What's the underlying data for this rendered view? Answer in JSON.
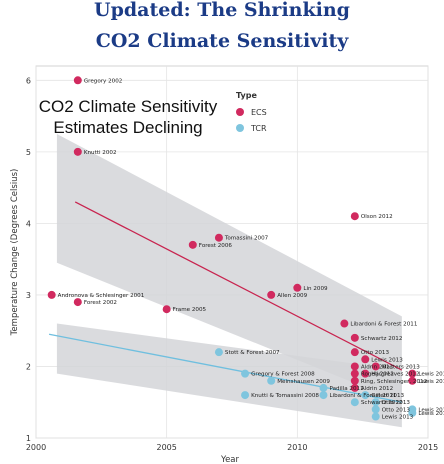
{
  "header": {
    "line1": "Updated: The Shrinking",
    "line2": "CO2 Climate Sensitivity"
  },
  "chart_data": {
    "type": "scatter",
    "title": "CO2 Climate Sensitivity Estimates Declining",
    "title_lines": [
      "CO2 Climate Sensitivity",
      "Estimates Declining"
    ],
    "xlabel": "Year",
    "ylabel": "Temperature Change (Degrees Celsius)",
    "xlim": [
      2000,
      2015
    ],
    "ylim": [
      1,
      6.2
    ],
    "x_ticks": [
      "2000",
      "2005",
      "2010",
      "2015"
    ],
    "y_ticks": [
      "1",
      "2",
      "3",
      "4",
      "5",
      "6"
    ],
    "grid": true,
    "legend": {
      "title": "Type",
      "position": "top-center"
    },
    "colors": {
      "ECS": "#d12a5f",
      "TCR": "#7fc5de",
      "band": "#d3d5d8",
      "ecs_trend": "#c8244f",
      "tcr_trend": "#6fbfdf"
    },
    "series": [
      {
        "name": "ECS",
        "points": [
          {
            "label": "Gregory 2002",
            "x": 2001.6,
            "y": 6.0
          },
          {
            "label": "Knutti 2002",
            "x": 2001.6,
            "y": 5.0
          },
          {
            "label": "Andronova & Schlesinger 2001",
            "x": 2000.6,
            "y": 3.0
          },
          {
            "label": "Forest 2002",
            "x": 2001.6,
            "y": 2.9
          },
          {
            "label": "Frame 2005",
            "x": 2005.0,
            "y": 2.8
          },
          {
            "label": "Forest 2006",
            "x": 2006.0,
            "y": 3.7
          },
          {
            "label": "Tomassini 2007",
            "x": 2007.0,
            "y": 3.8
          },
          {
            "label": "Allen 2009",
            "x": 2009.0,
            "y": 3.0
          },
          {
            "label": "Lin 2009",
            "x": 2010.0,
            "y": 3.1
          },
          {
            "label": "Olson 2012",
            "x": 2012.2,
            "y": 4.1
          },
          {
            "label": "Libardoni & Forest 2011",
            "x": 2011.8,
            "y": 2.6
          },
          {
            "label": "Schwartz 2012",
            "x": 2012.2,
            "y": 2.4
          },
          {
            "label": "Otto 2013",
            "x": 2012.2,
            "y": 2.2
          },
          {
            "label": "Aldrin 2012",
            "x": 2012.2,
            "y": 2.0
          },
          {
            "label": "Lewis 2013",
            "x": 2012.6,
            "y": 2.1
          },
          {
            "label": "Hargreaves 2012",
            "x": 2012.6,
            "y": 1.9
          },
          {
            "label": "Ring, Schlesinger, 2012",
            "x": 2012.2,
            "y": 1.8
          },
          {
            "label": "Rogelj 2012",
            "x": 2012.2,
            "y": 1.9
          },
          {
            "label": "Aldrin 2012",
            "x": 2012.2,
            "y": 1.7
          },
          {
            "label": "Lewis 2014",
            "x": 2014.4,
            "y": 1.8
          },
          {
            "label": "Lewis 2014",
            "x": 2014.4,
            "y": 1.9
          },
          {
            "label": "Masters 2013",
            "x": 2013.0,
            "y": 2.0
          }
        ]
      },
      {
        "name": "TCR",
        "points": [
          {
            "label": "Stott & Forest 2007",
            "x": 2007.0,
            "y": 2.2
          },
          {
            "label": "Gregory & Forest 2008",
            "x": 2008.0,
            "y": 1.9
          },
          {
            "label": "Meinshausen 2009",
            "x": 2009.0,
            "y": 1.8
          },
          {
            "label": "Knutti & Tomassini 2008",
            "x": 2008.0,
            "y": 1.6
          },
          {
            "label": "Padilla 2011",
            "x": 2011.0,
            "y": 1.7
          },
          {
            "label": "Libardoni & Forest 2011",
            "x": 2011.0,
            "y": 1.6
          },
          {
            "label": "Gillett 2013",
            "x": 2012.6,
            "y": 1.6
          },
          {
            "label": "Schwartz 2012",
            "x": 2012.2,
            "y": 1.5
          },
          {
            "label": "Otto 2013",
            "x": 2013.0,
            "y": 1.5
          },
          {
            "label": "Otto 2013",
            "x": 2013.0,
            "y": 1.4
          },
          {
            "label": "Lewis 2013",
            "x": 2013.0,
            "y": 1.3
          },
          {
            "label": "Lewis 2014",
            "x": 2014.4,
            "y": 1.35
          },
          {
            "label": "Lewis 2014",
            "x": 2014.4,
            "y": 1.4
          }
        ]
      }
    ],
    "trend_lines": [
      {
        "series": "ECS",
        "x": [
          2001.5,
          2014.0
        ],
        "y": [
          4.3,
          1.95
        ]
      },
      {
        "series": "TCR",
        "x": [
          2000.5,
          2014.0
        ],
        "y": [
          2.45,
          1.5
        ]
      }
    ],
    "confidence_bands": [
      {
        "series": "ECS",
        "x": [
          2000.8,
          2014.0
        ],
        "upper": [
          5.25,
          2.7
        ],
        "lower": [
          3.45,
          1.5
        ]
      },
      {
        "series": "TCR",
        "x": [
          2000.8,
          2014.0
        ],
        "upper": [
          2.6,
          1.95
        ],
        "lower": [
          1.9,
          1.15
        ]
      }
    ]
  }
}
